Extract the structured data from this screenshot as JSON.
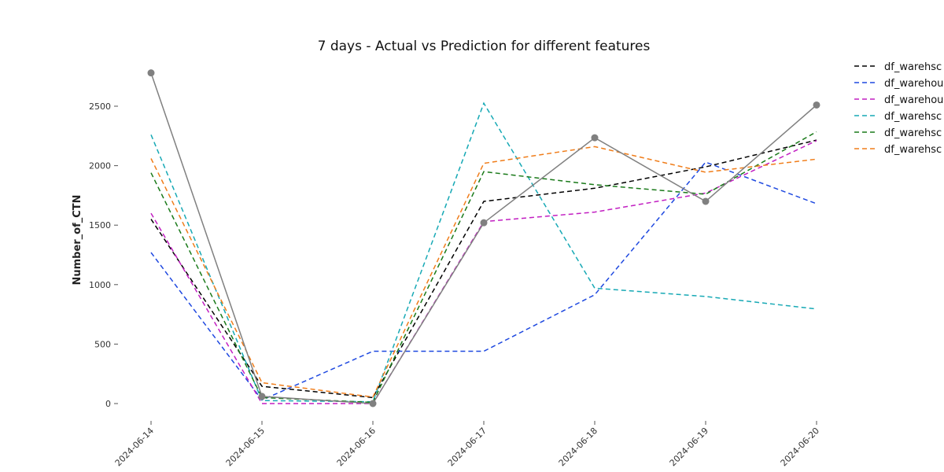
{
  "chart_data": {
    "type": "line",
    "title": "7 days - Actual vs Prediction for different features",
    "xlabel": "",
    "ylabel": "Number_of_CTN",
    "x": [
      "2024-06-14",
      "2024-06-15",
      "2024-06-16",
      "2024-06-17",
      "2024-06-18",
      "2024-06-19",
      "2024-06-20"
    ],
    "ylim": [
      -130,
      2850
    ],
    "yticks": [
      0,
      500,
      1000,
      1500,
      2000,
      2500
    ],
    "grid": false,
    "legend_position": "top-right",
    "series": [
      {
        "name": "df_warehsc",
        "color": "#000000",
        "style": "dashed",
        "markers": false,
        "values": [
          1550,
          145,
          50,
          1700,
          1810,
          1990,
          2215
        ]
      },
      {
        "name": "df_warehou",
        "color": "#1f49e0",
        "style": "dashed",
        "markers": false,
        "values": [
          1270,
          30,
          440,
          440,
          915,
          2030,
          1680
        ]
      },
      {
        "name": "df_warehou",
        "color": "#c21fc2",
        "style": "dashed",
        "markers": false,
        "values": [
          1600,
          0,
          0,
          1530,
          1610,
          1770,
          2210
        ]
      },
      {
        "name": "df_warehsc",
        "color": "#17a9b5",
        "style": "dashed",
        "markers": false,
        "values": [
          2260,
          25,
          15,
          2525,
          970,
          900,
          795
        ]
      },
      {
        "name": "df_warehsc",
        "color": "#1a7a1a",
        "style": "dashed",
        "markers": false,
        "values": [
          1940,
          50,
          10,
          1950,
          1840,
          1760,
          2285
        ]
      },
      {
        "name": "df_warehsc",
        "color": "#f07d1a",
        "style": "dashed",
        "markers": false,
        "values": [
          2060,
          175,
          55,
          2020,
          2160,
          1945,
          2055
        ]
      },
      {
        "name": "",
        "color": "#808080",
        "style": "solid",
        "markers": true,
        "values": [
          2780,
          60,
          0,
          1520,
          2235,
          1700,
          2510
        ]
      }
    ]
  }
}
